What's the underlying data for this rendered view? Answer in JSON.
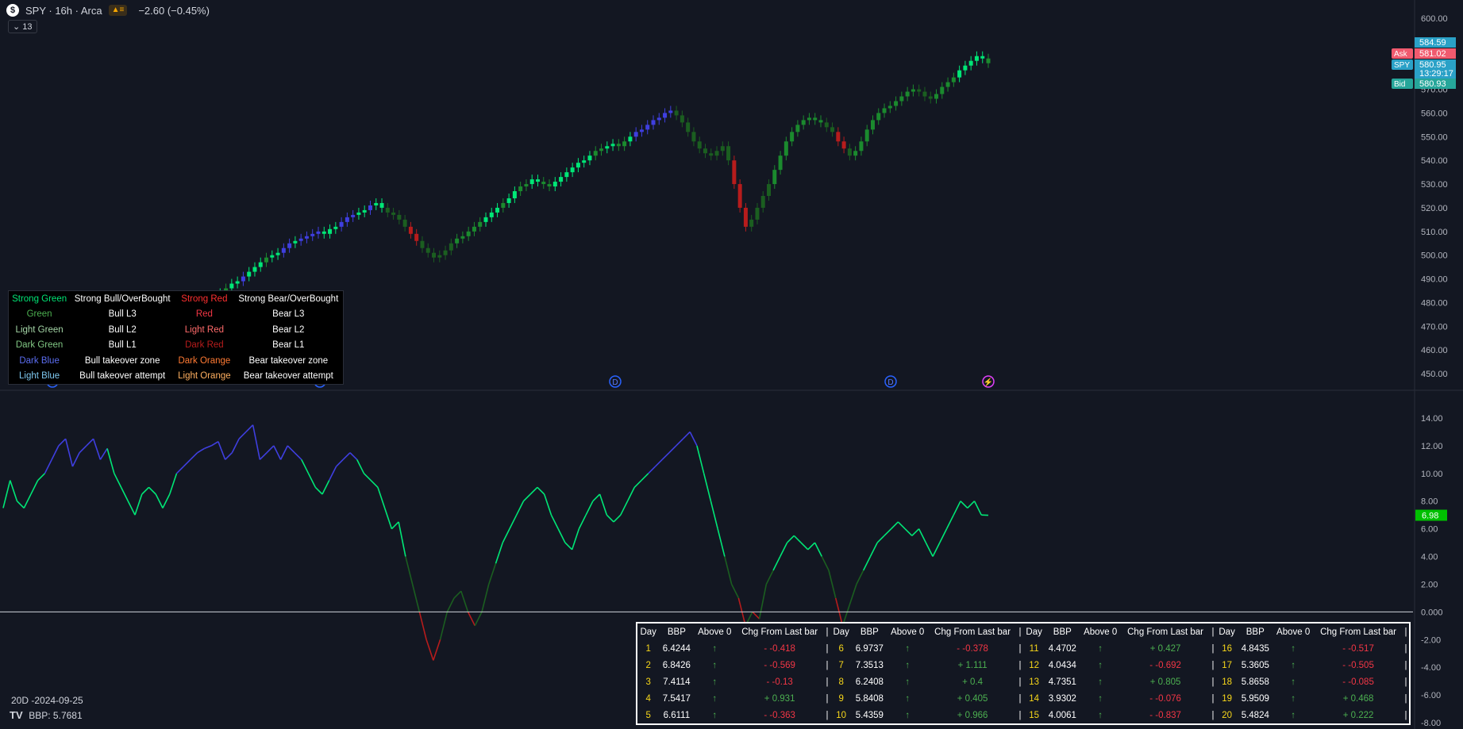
{
  "header": {
    "symbol_badge": "$",
    "title": "SPY · 16h · Arca",
    "flag": "▲≡",
    "change": "−2.60 (−0.45%)",
    "collapse": "⌄ 13"
  },
  "price_axis": {
    "ticks": [
      "600.00",
      "590.00",
      "580.00",
      "570.00",
      "560.00",
      "550.00",
      "540.00",
      "530.00",
      "520.00",
      "510.00",
      "500.00",
      "490.00",
      "480.00",
      "470.00",
      "460.00",
      "450.00"
    ],
    "labels": [
      {
        "tag": "",
        "value": "584.59",
        "color": "#2aa1c7"
      },
      {
        "tag": "Ask",
        "value": "581.02",
        "color": "#f05a6e"
      },
      {
        "tag": "SPY",
        "value": "580.95",
        "color": "#2aa1c7"
      },
      {
        "tag": "",
        "value": "13:29:17",
        "color": "#2aa1c7"
      },
      {
        "tag": "Bid",
        "value": "580.93",
        "color": "#26a69a"
      }
    ]
  },
  "indicator_axis": {
    "ticks": [
      "14.00",
      "12.00",
      "10.00",
      "8.00",
      "6.00",
      "4.00",
      "2.00",
      "0.000",
      "-2.00",
      "-4.00",
      "-6.00",
      "-8.00"
    ],
    "last_value": "6.98"
  },
  "event_markers": [
    "D",
    "D",
    "D",
    "D",
    "⚡"
  ],
  "legend": {
    "rows": [
      {
        "c1": "Strong Green",
        "c1_color": "#00e676",
        "c2": "Strong Bull/OverBought",
        "c3": "Strong Red",
        "c3_color": "#ff3030",
        "c4": "Strong Bear/OverBought"
      },
      {
        "c1": "Green",
        "c1_color": "#4caf50",
        "c2": "Bull L3",
        "c3": "Red",
        "c3_color": "#f23645",
        "c4": "Bear L3"
      },
      {
        "c1": "Light Green",
        "c1_color": "#a5d6a7",
        "c2": "Bull L2",
        "c3": "Light Red",
        "c3_color": "#ff6b6b",
        "c4": "Bear L2"
      },
      {
        "c1": "Dark Green",
        "c1_color": "#81c784",
        "c2": "Bull L1",
        "c3": "Dark Red",
        "c3_color": "#b71c1c",
        "c4": "Bear L1"
      },
      {
        "c1": "Dark Blue",
        "c1_color": "#5b6df0",
        "c2": "Bull takeover zone",
        "c3": "Dark Orange",
        "c3_color": "#ff7a33",
        "c4": "Bear takeover zone"
      },
      {
        "c1": "Light Blue",
        "c1_color": "#7ec8f0",
        "c2": "Bull takeover attempt",
        "c3": "Light Orange",
        "c3_color": "#ffb060",
        "c4": "Bear takeover attempt"
      }
    ]
  },
  "corner": {
    "period": "20D -2024-09-25",
    "bbp": "BBP: 5.7681",
    "logo": "TV"
  },
  "stats_table": {
    "headers": [
      "Day",
      "BBP",
      "Above 0",
      "Chg From Last bar",
      "|"
    ],
    "groups": [
      [
        {
          "day": "1",
          "bbp": "6.4244",
          "above": "↑",
          "chg": "- -0.418",
          "sign": "neg"
        },
        {
          "day": "2",
          "bbp": "6.8426",
          "above": "↑",
          "chg": "- -0.569",
          "sign": "neg"
        },
        {
          "day": "3",
          "bbp": "7.4114",
          "above": "↑",
          "chg": "- -0.13",
          "sign": "neg"
        },
        {
          "day": "4",
          "bbp": "7.5417",
          "above": "↑",
          "chg": "+ 0.931",
          "sign": "pos"
        },
        {
          "day": "5",
          "bbp": "6.6111",
          "above": "↑",
          "chg": "- -0.363",
          "sign": "neg"
        }
      ],
      [
        {
          "day": "6",
          "bbp": "6.9737",
          "above": "↑",
          "chg": "- -0.378",
          "sign": "neg"
        },
        {
          "day": "7",
          "bbp": "7.3513",
          "above": "↑",
          "chg": "+ 1.111",
          "sign": "pos"
        },
        {
          "day": "8",
          "bbp": "6.2408",
          "above": "↑",
          "chg": "+ 0.4",
          "sign": "pos"
        },
        {
          "day": "9",
          "bbp": "5.8408",
          "above": "↑",
          "chg": "+ 0.405",
          "sign": "pos"
        },
        {
          "day": "10",
          "bbp": "5.4359",
          "above": "↑",
          "chg": "+ 0.966",
          "sign": "pos"
        }
      ],
      [
        {
          "day": "11",
          "bbp": "4.4702",
          "above": "↑",
          "chg": "+ 0.427",
          "sign": "pos"
        },
        {
          "day": "12",
          "bbp": "4.0434",
          "above": "↑",
          "chg": "- -0.692",
          "sign": "neg"
        },
        {
          "day": "13",
          "bbp": "4.7351",
          "above": "↑",
          "chg": "+ 0.805",
          "sign": "pos"
        },
        {
          "day": "14",
          "bbp": "3.9302",
          "above": "↑",
          "chg": "- -0.076",
          "sign": "neg"
        },
        {
          "day": "15",
          "bbp": "4.0061",
          "above": "↑",
          "chg": "- -0.837",
          "sign": "neg"
        }
      ],
      [
        {
          "day": "16",
          "bbp": "4.8435",
          "above": "↑",
          "chg": "- -0.517",
          "sign": "neg"
        },
        {
          "day": "17",
          "bbp": "5.3605",
          "above": "↑",
          "chg": "- -0.505",
          "sign": "neg"
        },
        {
          "day": "18",
          "bbp": "5.8658",
          "above": "↑",
          "chg": "- -0.085",
          "sign": "neg"
        },
        {
          "day": "19",
          "bbp": "5.9509",
          "above": "↑",
          "chg": "+ 0.468",
          "sign": "pos"
        },
        {
          "day": "20",
          "bbp": "5.4824",
          "above": "↑",
          "chg": "+ 0.222",
          "sign": "pos"
        }
      ]
    ]
  },
  "colors": {
    "background": "#131722",
    "grid": "#2a2e39",
    "strong_green": "#00e676",
    "green": "#1b8a2e",
    "blue": "#3f3fe0",
    "red": "#b71c1c"
  },
  "chart_data": [
    {
      "type": "candlestick",
      "title": "SPY · 16h · Arca",
      "ylim": [
        445,
        605
      ],
      "close": [
        465,
        466,
        468,
        470,
        471,
        473,
        474,
        476,
        477,
        478,
        480,
        482,
        484,
        486,
        488,
        489,
        491,
        493,
        495,
        497,
        499,
        500,
        501,
        503,
        505,
        506,
        507,
        508,
        509,
        510,
        509,
        511,
        512,
        514,
        516,
        517,
        518,
        519,
        521,
        522,
        520,
        518,
        517,
        515,
        512,
        509,
        506,
        503,
        501,
        499,
        500,
        502,
        505,
        507,
        508,
        510,
        512,
        514,
        516,
        518,
        520,
        522,
        524,
        527,
        529,
        530,
        532,
        531,
        530,
        529,
        531,
        533,
        535,
        537,
        539,
        540,
        542,
        544,
        545,
        546,
        547,
        546,
        548,
        550,
        552,
        553,
        555,
        557,
        558,
        560,
        561,
        559,
        556,
        552,
        548,
        545,
        543,
        542,
        544,
        546,
        540,
        530,
        520,
        512,
        515,
        520,
        525,
        530,
        536,
        542,
        548,
        552,
        555,
        557,
        558,
        557,
        556,
        554,
        552,
        548,
        545,
        542,
        544,
        548,
        553,
        557,
        560,
        562,
        563,
        565,
        567,
        569,
        570,
        569,
        567,
        566,
        568,
        571,
        573,
        575,
        578,
        580,
        582,
        584,
        583,
        581
      ],
      "colors": [
        "G",
        "G",
        "G",
        "G",
        "G",
        "G",
        "G",
        "G",
        "G",
        "G",
        "G",
        "S",
        "S",
        "G",
        "S",
        "S",
        "B",
        "S",
        "S",
        "S",
        "G",
        "S",
        "S",
        "B",
        "B",
        "S",
        "B",
        "B",
        "B",
        "B",
        "S",
        "S",
        "S",
        "B",
        "B",
        "B",
        "S",
        "S",
        "B",
        "S",
        "S",
        "D",
        "D",
        "D",
        "D",
        "R",
        "R",
        "D",
        "D",
        "D",
        "D",
        "D",
        "D",
        "G",
        "G",
        "G",
        "G",
        "G",
        "S",
        "S",
        "S",
        "G",
        "S",
        "S",
        "G",
        "G",
        "S",
        "S",
        "G",
        "G",
        "S",
        "S",
        "S",
        "S",
        "S",
        "S",
        "S",
        "G",
        "G",
        "S",
        "S",
        "G",
        "G",
        "S",
        "B",
        "B",
        "B",
        "B",
        "B",
        "B",
        "B",
        "D",
        "D",
        "D",
        "D",
        "D",
        "D",
        "D",
        "D",
        "D",
        "D",
        "R",
        "R",
        "R",
        "D",
        "D",
        "D",
        "D",
        "G",
        "G",
        "G",
        "G",
        "G",
        "G",
        "G",
        "G",
        "G",
        "D",
        "D",
        "R",
        "R",
        "D",
        "G",
        "G",
        "G",
        "G",
        "G",
        "G",
        "G",
        "G",
        "G",
        "G",
        "G",
        "D",
        "D",
        "D",
        "G",
        "G",
        "G",
        "G",
        "S",
        "S",
        "S",
        "S",
        "S",
        "G"
      ]
    },
    {
      "type": "line",
      "title": "BBP",
      "ylim": [
        -8,
        14
      ],
      "last": 6.98,
      "values": [
        7.5,
        9.5,
        8,
        7.5,
        8.5,
        9.5,
        10,
        11,
        12,
        12.5,
        10.5,
        11.5,
        12,
        12.5,
        11,
        11.8,
        10,
        9,
        8,
        7,
        8.5,
        9,
        8.5,
        7.5,
        8.5,
        10,
        10.5,
        11,
        11.5,
        11.8,
        12,
        12.3,
        11,
        11.5,
        12.5,
        13,
        13.5,
        11,
        11.5,
        12,
        11,
        12,
        11.5,
        11,
        10,
        9,
        8.5,
        9.5,
        10.5,
        11,
        11.5,
        11,
        10,
        9.5,
        9,
        7.5,
        6,
        6.5,
        4,
        2,
        0,
        -2,
        -3.5,
        -2,
        0,
        1,
        1.5,
        0,
        -1,
        0,
        2,
        3.5,
        5,
        6,
        7,
        8,
        8.5,
        9,
        8.5,
        7,
        6,
        5,
        4.5,
        6,
        7,
        8,
        8.5,
        7,
        6.5,
        7,
        8,
        9,
        9.5,
        10,
        10.5,
        11,
        11.5,
        12,
        12.5,
        13,
        12,
        10,
        8,
        6,
        4,
        2,
        1,
        -1,
        0,
        -0.5,
        2,
        3,
        4,
        5,
        5.5,
        5,
        4.5,
        5,
        4,
        3,
        1,
        -1,
        0.5,
        2,
        3,
        4,
        5,
        5.5,
        6,
        6.5,
        6,
        5.5,
        6,
        5,
        4,
        5,
        6,
        7,
        8,
        7.5,
        8,
        7,
        6.98
      ]
    }
  ]
}
